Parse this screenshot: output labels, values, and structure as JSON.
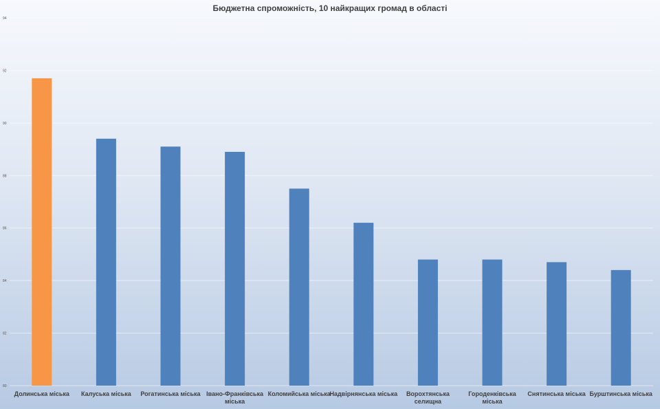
{
  "chart_data": {
    "type": "bar",
    "title": "Бюджетна спроможність, 10 найкращих громад в області",
    "xlabel": "",
    "ylabel": "",
    "categories": [
      "Долинська  міська",
      "Калуська  міська",
      "Рогатинська  міська",
      "Івано-Франківська міська",
      "Коломийська  міська",
      "Надвірнянська  міська",
      "Ворохтянська селищна",
      "Городенківська міська",
      "Снятинська  міська",
      "Бурштинська  міська"
    ],
    "category_lines": [
      [
        "Долинська  міська"
      ],
      [
        "Калуська  міська"
      ],
      [
        "Рогатинська  міська"
      ],
      [
        "Івано-Франківська",
        "міська"
      ],
      [
        "Коломийська  міська"
      ],
      [
        "Надвірнянська  міська"
      ],
      [
        "Ворохтянська",
        "селищна"
      ],
      [
        "Городенківська",
        "міська"
      ],
      [
        "Снятинська  міська"
      ],
      [
        "Бурштинська  міська"
      ]
    ],
    "values": [
      91.7,
      89.4,
      89.1,
      88.9,
      87.5,
      86.2,
      84.8,
      84.8,
      84.7,
      84.4
    ],
    "highlight_index": 0,
    "ylim": [
      80,
      94
    ],
    "yticks": [
      "80",
      "82",
      "84",
      "86",
      "88",
      "90",
      "92",
      "94"
    ],
    "colors": {
      "bar": "#4f81bd",
      "highlight": "#f79646"
    },
    "grid": true,
    "legend": "none"
  }
}
